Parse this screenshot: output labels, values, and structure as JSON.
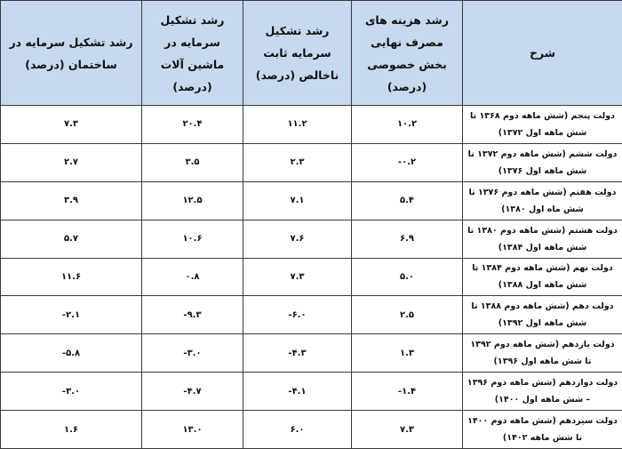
{
  "table": {
    "headers": [
      "شرح",
      "رشد هزینه های مصرف نهایی بخش خصوصی (درصد)",
      "رشد تشکیل سرمایه ثابت ناخالص (درصد)",
      "رشد تشکیل سرمایه در ماشین آلات (درصد)",
      "رشد تشکیل سرمایه در ساختمان (درصد)"
    ],
    "rows": [
      [
        "دولت پنجم (شش ماهه دوم ۱۳۶۸ تا شش ماهه اول ۱۳۷۲)",
        "۱۰.۲",
        "۱۱.۲",
        "۲۰.۴",
        "۷.۳"
      ],
      [
        "دولت ششم (شش ماهه دوم ۱۳۷۲ تا شش ماهه اول ۱۳۷۶)",
        "-۰.۲",
        "۲.۳",
        "۳.۵",
        "۲.۷"
      ],
      [
        "دولت هفتم (شش ماهه دوم ۱۳۷۶ تا شش ماه اول ۱۳۸۰)",
        "۵.۴",
        "۷.۱",
        "۱۲.۵",
        "۳.۹"
      ],
      [
        "دولت هشتم (شش ماهه دوم ۱۳۸۰ تا شش ماهه اول ۱۳۸۴)",
        "۶.۹",
        "۷.۶",
        "۱۰.۶",
        "۵.۷"
      ],
      [
        "دولت نهم (شش ماهه دوم ۱۳۸۴ تا شش ماهه اول ۱۳۸۸)",
        "۵.۰",
        "۷.۳",
        "۰.۸",
        "۱۱.۶"
      ],
      [
        "دولت دهم (شش ماهه دوم ۱۳۸۸ تا شش ماهه اول ۱۳۹۲)",
        "۲.۵",
        "-۶.۰",
        "-۹.۳",
        "-۲.۱"
      ],
      [
        "دولت یازدهم (شش ماهه دوم ۱۳۹۲ تا شش ماهه اول ۱۳۹۶)",
        "۱.۳",
        "-۴.۳",
        "-۳.۰",
        "-۵.۸"
      ],
      [
        "دولت دوازدهم (شش ماهه دوم ۱۳۹۶ – شش ماهه اول ۱۴۰۰)",
        "-۱.۴",
        "-۴.۱",
        "-۴.۷",
        "-۳.۰"
      ],
      [
        "دولت سیزدهم (شش ماهه دوم ۱۴۰۰ تا شش ماهه ۱۴۰۲)",
        "۷.۳",
        "۶.۰",
        "۱۳.۰",
        "۱.۶"
      ]
    ]
  },
  "colors": {
    "header_bg": "#c6d9ee",
    "border": "#3a3a3a"
  }
}
